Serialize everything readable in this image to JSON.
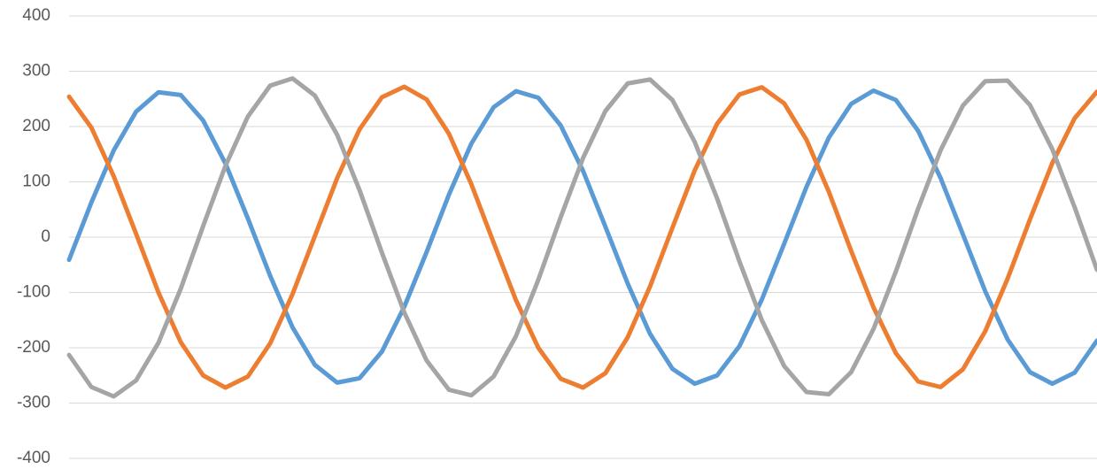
{
  "chart_data": {
    "type": "line",
    "ylim": [
      -400,
      400
    ],
    "yticks": [
      -400,
      -300,
      -200,
      -100,
      0,
      100,
      200,
      300,
      400
    ],
    "grid": true,
    "series": [
      {
        "color": "#5b9bd5",
        "values": [
          -41,
          63,
          157,
          227,
          262,
          257,
          211,
          133,
          34,
          -70,
          -163,
          -231,
          -263,
          -255,
          -207,
          -126,
          -27,
          77,
          169,
          235,
          264,
          252,
          202,
          120,
          19,
          -84,
          -175,
          -238,
          -265,
          -250,
          -197,
          -113,
          -12,
          91,
          180,
          241,
          265,
          248,
          192,
          107,
          5,
          -98,
          -185,
          -244,
          -265,
          -245,
          -187
        ]
      },
      {
        "color": "#ed7d31",
        "values": [
          254,
          198,
          110,
          6,
          -100,
          -190,
          -250,
          -272,
          -252,
          -192,
          -103,
          2,
          107,
          195,
          253,
          272,
          249,
          187,
          96,
          -10,
          -114,
          -200,
          -256,
          -272,
          -246,
          -181,
          -89,
          17,
          121,
          205,
          258,
          271,
          242,
          176,
          82,
          -25,
          -127,
          -210,
          -261,
          -271,
          -239,
          -170,
          -75,
          32,
          134,
          215,
          263
        ]
      },
      {
        "color": "#a5a5a5",
        "values": [
          -213,
          -271,
          -288,
          -259,
          -191,
          -93,
          20,
          129,
          218,
          274,
          287,
          256,
          185,
          85,
          -28,
          -136,
          -223,
          -276,
          -286,
          -252,
          -179,
          -77,
          36,
          143,
          228,
          278,
          285,
          248,
          172,
          70,
          -44,
          -150,
          -233,
          -280,
          -284,
          -244,
          -166,
          -62,
          52,
          157,
          238,
          282,
          283,
          239,
          159,
          54,
          -59
        ]
      }
    ]
  }
}
